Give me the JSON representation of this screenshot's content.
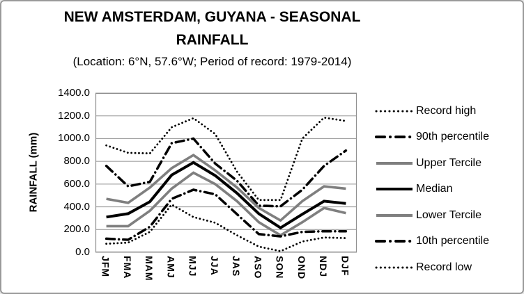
{
  "title": {
    "line1": "NEW AMSTERDAM, GUYANA - SEASONAL",
    "line2": "RAINFALL",
    "subtitle": "(Location: 6°N, 57.6°W; Period of record: 1979-2014)"
  },
  "y_axis": {
    "title": "RAINFALL (mm)",
    "tick_labels": [
      "1400.0",
      "1200.0",
      "1000.0",
      "800.0",
      "600.0",
      "400.0",
      "200.0",
      "0.0"
    ]
  },
  "colors": {
    "series_black": "#000000",
    "series_gray": "#7f7f7f",
    "gridline": "#909090",
    "text": "#000000"
  },
  "chart_data": {
    "type": "line",
    "title": "NEW AMSTERDAM, GUYANA - SEASONAL RAINFALL",
    "subtitle": "(Location: 6°N, 57.6°W; Period of record: 1979-2014)",
    "xlabel": "",
    "ylabel": "RAINFALL (mm)",
    "ylim": [
      0,
      1400
    ],
    "y_tick_step": 200,
    "grid": true,
    "legend_position": "right",
    "categories": [
      "JFM",
      "FMA",
      "MAM",
      "AMJ",
      "MJJ",
      "JJA",
      "JAS",
      "ASO",
      "SON",
      "OND",
      "NDJ",
      "DJF"
    ],
    "series": [
      {
        "name": "Record high",
        "style": "dotted",
        "color": "#000000",
        "values": [
          940,
          875,
          870,
          1100,
          1180,
          1040,
          710,
          460,
          460,
          1000,
          1185,
          1155
        ]
      },
      {
        "name": "90th percentile",
        "style": "dashdot",
        "color": "#000000",
        "values": [
          760,
          580,
          620,
          960,
          1000,
          780,
          630,
          410,
          405,
          550,
          760,
          895
        ]
      },
      {
        "name": "Upper Tercile",
        "style": "solid",
        "color": "#7f7f7f",
        "values": [
          470,
          435,
          570,
          740,
          855,
          720,
          570,
          390,
          280,
          450,
          580,
          560
        ]
      },
      {
        "name": "Median",
        "style": "solid",
        "color": "#000000",
        "values": [
          310,
          340,
          445,
          680,
          790,
          675,
          520,
          340,
          215,
          335,
          450,
          430
        ]
      },
      {
        "name": "Lower Tercile",
        "style": "solid",
        "color": "#7f7f7f",
        "values": [
          230,
          230,
          365,
          560,
          700,
          600,
          450,
          265,
          150,
          265,
          390,
          345
        ]
      },
      {
        "name": "10th percentile",
        "style": "dashdot",
        "color": "#000000",
        "values": [
          120,
          110,
          225,
          470,
          550,
          510,
          335,
          160,
          140,
          180,
          185,
          185
        ]
      },
      {
        "name": "Record low",
        "style": "dotted",
        "color": "#000000",
        "values": [
          75,
          85,
          180,
          420,
          310,
          260,
          150,
          50,
          10,
          95,
          130,
          125
        ]
      }
    ]
  }
}
